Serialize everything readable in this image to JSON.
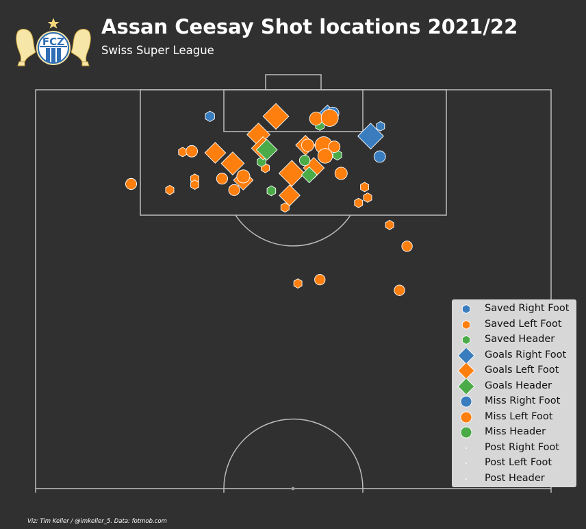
{
  "header": {
    "title": "Assan Ceesay Shot locations 2021/22",
    "subtitle": "Swiss Super League",
    "logo_text": "FCZ"
  },
  "credit": "Viz: Tim Keller / @imkeller_5. Data: fotmob.com",
  "colors": {
    "background": "#303030",
    "lines": "#bdbdbd",
    "right_foot": "#3a7dbf",
    "left_foot": "#ff7f0e",
    "header": "#4aab48",
    "legend_bg": "#d7d7d7"
  },
  "chart_data": {
    "type": "scatter",
    "pitch": "vertical half-pitch, goal at top",
    "x_axis": "pitch width (0 = left touchline, 68 = right touchline)",
    "y_axis": "distance from goal line (0 = goal line)",
    "xlim": [
      0,
      68
    ],
    "ylim": [
      0,
      52.5
    ],
    "legend": {
      "position": "lower-right",
      "items": [
        {
          "label": "Saved Right Foot",
          "marker": "hexagon",
          "color": "#3a7dbf"
        },
        {
          "label": "Saved Left Foot",
          "marker": "hexagon",
          "color": "#ff7f0e"
        },
        {
          "label": "Saved Header",
          "marker": "hexagon",
          "color": "#4aab48"
        },
        {
          "label": "Goals Right Foot",
          "marker": "diamond",
          "color": "#3a7dbf"
        },
        {
          "label": "Goals Left Foot",
          "marker": "diamond",
          "color": "#ff7f0e"
        },
        {
          "label": "Goals Header",
          "marker": "diamond",
          "color": "#4aab48"
        },
        {
          "label": "Miss Right Foot",
          "marker": "circle",
          "color": "#3a7dbf"
        },
        {
          "label": "Miss Left Foot",
          "marker": "circle",
          "color": "#ff7f0e"
        },
        {
          "label": "Miss Header",
          "marker": "circle",
          "color": "#4aab48"
        },
        {
          "label": "Post Right Foot",
          "marker": "point",
          "color": "#ffffff"
        },
        {
          "label": "Post Left Foot",
          "marker": "point",
          "color": "#ffffff"
        },
        {
          "label": "Post Header",
          "marker": "point",
          "color": "#ffffff"
        }
      ]
    },
    "series": [
      {
        "name": "Saved Right Foot",
        "points": [
          {
            "x": 23.0,
            "y": 3.5,
            "xg": 0.05
          },
          {
            "x": 45.5,
            "y": 4.8,
            "xg": 0.03
          }
        ]
      },
      {
        "name": "Saved Left Foot",
        "points": [
          {
            "x": 19.4,
            "y": 8.2,
            "xg": 0.03
          },
          {
            "x": 21.0,
            "y": 11.7,
            "xg": 0.03
          },
          {
            "x": 21.0,
            "y": 12.5,
            "xg": 0.03
          },
          {
            "x": 17.7,
            "y": 13.2,
            "xg": 0.03
          },
          {
            "x": 30.3,
            "y": 10.3,
            "xg": 0.03
          },
          {
            "x": 32.9,
            "y": 15.5,
            "xg": 0.03
          },
          {
            "x": 43.4,
            "y": 12.8,
            "xg": 0.03
          },
          {
            "x": 43.8,
            "y": 14.2,
            "xg": 0.03
          },
          {
            "x": 42.6,
            "y": 14.9,
            "xg": 0.03
          },
          {
            "x": 46.7,
            "y": 17.8,
            "xg": 0.03
          },
          {
            "x": 34.6,
            "y": 25.5,
            "xg": 0.03
          }
        ]
      },
      {
        "name": "Saved Header",
        "points": [
          {
            "x": 37.5,
            "y": 4.7,
            "xg": 0.04
          },
          {
            "x": 39.8,
            "y": 8.6,
            "xg": 0.04
          },
          {
            "x": 29.8,
            "y": 9.5,
            "xg": 0.04
          },
          {
            "x": 31.1,
            "y": 13.3,
            "xg": 0.04
          }
        ]
      },
      {
        "name": "Goals Right Foot",
        "points": [
          {
            "x": 38.5,
            "y": 3.3,
            "xg": 0.25
          },
          {
            "x": 44.2,
            "y": 6.1,
            "xg": 0.55
          }
        ]
      },
      {
        "name": "Goals Left Foot",
        "points": [
          {
            "x": 31.7,
            "y": 3.5,
            "xg": 0.55
          },
          {
            "x": 29.4,
            "y": 5.9,
            "xg": 0.4
          },
          {
            "x": 30.0,
            "y": 7.7,
            "xg": 0.4
          },
          {
            "x": 23.7,
            "y": 8.3,
            "xg": 0.3
          },
          {
            "x": 26.0,
            "y": 9.7,
            "xg": 0.4
          },
          {
            "x": 35.6,
            "y": 7.3,
            "xg": 0.25
          },
          {
            "x": 33.8,
            "y": 11.0,
            "xg": 0.55
          },
          {
            "x": 36.7,
            "y": 10.3,
            "xg": 0.3
          },
          {
            "x": 27.4,
            "y": 11.9,
            "xg": 0.25
          },
          {
            "x": 33.5,
            "y": 13.9,
            "xg": 0.3
          }
        ]
      },
      {
        "name": "Goals Header",
        "points": [
          {
            "x": 30.5,
            "y": 7.9,
            "xg": 0.3
          },
          {
            "x": 36.1,
            "y": 11.2,
            "xg": 0.12
          }
        ]
      },
      {
        "name": "Miss Right Foot",
        "points": [
          {
            "x": 39.2,
            "y": 3.1,
            "xg": 0.08
          },
          {
            "x": 45.4,
            "y": 8.8,
            "xg": 0.06
          }
        ]
      },
      {
        "name": "Miss Left Foot",
        "points": [
          {
            "x": 37.0,
            "y": 3.8,
            "xg": 0.1
          },
          {
            "x": 38.8,
            "y": 3.7,
            "xg": 0.25
          },
          {
            "x": 35.9,
            "y": 7.3,
            "xg": 0.08
          },
          {
            "x": 38.0,
            "y": 7.3,
            "xg": 0.25
          },
          {
            "x": 39.4,
            "y": 7.5,
            "xg": 0.06
          },
          {
            "x": 38.2,
            "y": 8.7,
            "xg": 0.15
          },
          {
            "x": 20.6,
            "y": 8.1,
            "xg": 0.06
          },
          {
            "x": 12.6,
            "y": 12.4,
            "xg": 0.05
          },
          {
            "x": 24.6,
            "y": 11.7,
            "xg": 0.05
          },
          {
            "x": 27.4,
            "y": 11.4,
            "xg": 0.1
          },
          {
            "x": 26.2,
            "y": 13.2,
            "xg": 0.05
          },
          {
            "x": 40.3,
            "y": 11.0,
            "xg": 0.08
          },
          {
            "x": 49.0,
            "y": 20.6,
            "xg": 0.04
          },
          {
            "x": 37.5,
            "y": 25.0,
            "xg": 0.04
          },
          {
            "x": 48.0,
            "y": 26.4,
            "xg": 0.04
          }
        ]
      },
      {
        "name": "Miss Header",
        "points": [
          {
            "x": 35.5,
            "y": 9.3,
            "xg": 0.04
          }
        ]
      },
      {
        "name": "Post Right Foot",
        "points": []
      },
      {
        "name": "Post Left Foot",
        "points": []
      },
      {
        "name": "Post Header",
        "points": []
      }
    ]
  }
}
